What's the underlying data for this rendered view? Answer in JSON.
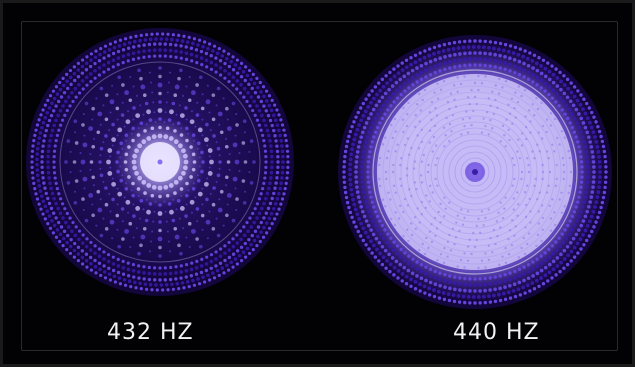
{
  "labels": {
    "left": "432 HZ",
    "right": "440 HZ"
  },
  "colors": {
    "background": "#000000",
    "pattern_dark": "#3a1aa8",
    "pattern_mid": "#6a48e6",
    "pattern_light": "#c9bdf7",
    "label_text": "#f2f2f2"
  },
  "patterns": [
    {
      "frequency_hz": 432,
      "style": "radial-spokes"
    },
    {
      "frequency_hz": 440,
      "style": "concentric-diffuse"
    }
  ]
}
